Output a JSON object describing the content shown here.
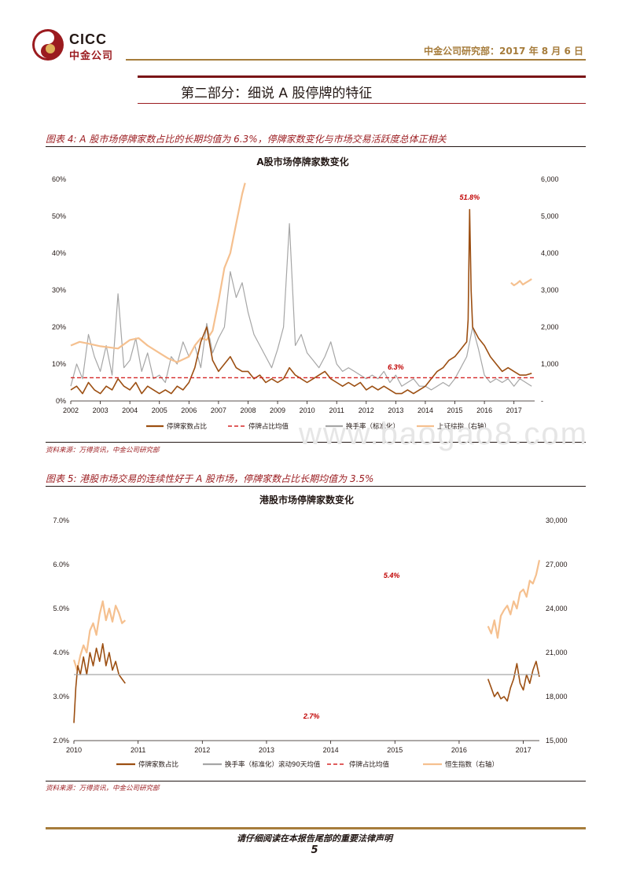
{
  "header": {
    "logo_en": "CICC",
    "logo_cn": "中金公司",
    "right_text": "中金公司研究部：2017 年 8 月 6 日",
    "colors": {
      "brand": "#9b1b1f",
      "gold": "#a67c3b"
    }
  },
  "section": {
    "title": "第二部分：细说 A 股停牌的特征"
  },
  "figures": [
    {
      "caption": "图表 4: A 股市场停牌家数占比的长期均值为 6.3%，停牌家数变化与市场交易活跃度总体正相关",
      "source": "资料来源：万得资讯，中金公司研究部"
    },
    {
      "caption": "图表 5: 港股市场交易的连续性好于 A 股市场，停牌家数占比长期均值为 3.5%",
      "source": "资料来源：万得资讯，中金公司研究部"
    }
  ],
  "chart_data": [
    {
      "type": "line",
      "title": "A股市场停牌家数变化",
      "x_ticks": [
        "2002",
        "2003",
        "2004",
        "2005",
        "2006",
        "2007",
        "2008",
        "2009",
        "2010",
        "2011",
        "2012",
        "2013",
        "2014",
        "2015",
        "2016",
        "2017"
      ],
      "x_range": [
        2002.0,
        2017.7
      ],
      "y_left_ticks": [
        "0%",
        "10%",
        "20%",
        "30%",
        "40%",
        "50%",
        "60%"
      ],
      "ylim_left": [
        0,
        60
      ],
      "y_right_ticks": [
        "-",
        "1,000",
        "2,000",
        "3,000",
        "4,000",
        "5,000",
        "6,000"
      ],
      "ylim_right": [
        0,
        6000
      ],
      "annotations": [
        {
          "text": "51.8%",
          "x": 2015.5,
          "y": 54.5
        },
        {
          "text": "6.3%",
          "x": 2013.0,
          "y": 8.5
        }
      ],
      "legend": [
        "停牌家数占比",
        "停牌占比均值",
        "换手率（标准化）",
        "上证综指（右轴）"
      ],
      "colors": {
        "suspension": "#9c4f12",
        "mean": "#d62828",
        "turnover": "#a6a6a6",
        "index": "#f5c08f"
      },
      "series": [
        {
          "name": "换手率（标准化）",
          "axis": "left",
          "x": [
            2002.0,
            2002.2,
            2002.4,
            2002.6,
            2002.8,
            2003.0,
            2003.2,
            2003.4,
            2003.6,
            2003.8,
            2004.0,
            2004.2,
            2004.4,
            2004.6,
            2004.8,
            2005.0,
            2005.2,
            2005.4,
            2005.6,
            2005.8,
            2006.0,
            2006.2,
            2006.4,
            2006.6,
            2006.8,
            2007.0,
            2007.2,
            2007.4,
            2007.6,
            2007.8,
            2008.0,
            2008.2,
            2008.4,
            2008.6,
            2008.8,
            2009.0,
            2009.2,
            2009.4,
            2009.6,
            2009.8,
            2010.0,
            2010.2,
            2010.4,
            2010.6,
            2010.8,
            2011.0,
            2011.2,
            2011.4,
            2011.6,
            2011.8,
            2012.0,
            2012.2,
            2012.4,
            2012.6,
            2012.8,
            2013.0,
            2013.2,
            2013.4,
            2013.6,
            2013.8,
            2014.0,
            2014.2,
            2014.4,
            2014.6,
            2014.8,
            2015.0,
            2015.2,
            2015.4,
            2015.6,
            2015.8,
            2016.0,
            2016.2,
            2016.4,
            2016.6,
            2016.8,
            2017.0,
            2017.2,
            2017.4,
            2017.6
          ],
          "values": [
            4,
            10,
            6,
            18,
            12,
            8,
            15,
            7,
            29,
            9,
            11,
            17,
            8,
            13,
            6,
            7,
            5,
            12,
            10,
            16,
            12,
            15,
            9,
            21,
            13,
            17,
            20,
            35,
            28,
            32,
            24,
            18,
            15,
            12,
            9,
            14,
            20,
            48,
            15,
            18,
            13,
            11,
            9,
            12,
            16,
            10,
            8,
            9,
            8,
            7,
            6,
            7,
            6,
            8,
            5,
            7,
            4,
            5,
            6,
            4,
            4,
            3,
            4,
            5,
            4,
            6,
            9,
            12,
            20,
            14,
            7,
            5,
            6,
            5,
            6,
            4,
            6,
            5,
            4
          ]
        },
        {
          "name": "上证综指（右轴）",
          "axis": "right",
          "x": [
            2002.0,
            2002.3,
            2002.6,
            2003.0,
            2003.3,
            2003.6,
            2004.0,
            2004.3,
            2004.6,
            2005.0,
            2005.3,
            2005.6,
            2006.0,
            2006.2,
            2006.4,
            2006.6,
            2006.8,
            2007.0,
            2007.2,
            2007.4,
            2007.6,
            2007.8,
            2007.9
          ],
          "values": [
            1500,
            1600,
            1550,
            1480,
            1450,
            1420,
            1650,
            1700,
            1500,
            1300,
            1150,
            1050,
            1200,
            1500,
            1700,
            1650,
            1900,
            2700,
            3600,
            4000,
            4800,
            5600,
            5900
          ]
        },
        {
          "name": "上证综指（右轴）",
          "axis": "right",
          "x": [
            2016.9,
            2017.0,
            2017.1,
            2017.2,
            2017.3,
            2017.4,
            2017.5,
            2017.6
          ],
          "values": [
            3200,
            3130,
            3180,
            3250,
            3150,
            3200,
            3250,
            3300
          ]
        },
        {
          "name": "停牌家数占比",
          "axis": "left",
          "x": [
            2002.0,
            2002.2,
            2002.4,
            2002.6,
            2002.8,
            2003.0,
            2003.2,
            2003.4,
            2003.6,
            2003.8,
            2004.0,
            2004.2,
            2004.4,
            2004.6,
            2004.8,
            2005.0,
            2005.2,
            2005.4,
            2005.6,
            2005.8,
            2006.0,
            2006.2,
            2006.4,
            2006.6,
            2006.8,
            2007.0,
            2007.2,
            2007.4,
            2007.6,
            2007.8,
            2008.0,
            2008.2,
            2008.4,
            2008.6,
            2008.8,
            2009.0,
            2009.2,
            2009.4,
            2009.6,
            2009.8,
            2010.0,
            2010.2,
            2010.4,
            2010.6,
            2010.8,
            2011.0,
            2011.2,
            2011.4,
            2011.6,
            2011.8,
            2012.0,
            2012.2,
            2012.4,
            2012.6,
            2012.8,
            2013.0,
            2013.2,
            2013.4,
            2013.6,
            2013.8,
            2014.0,
            2014.2,
            2014.4,
            2014.6,
            2014.8,
            2015.0,
            2015.2,
            2015.4,
            2015.45,
            2015.5,
            2015.55,
            2015.6,
            2015.8,
            2016.0,
            2016.2,
            2016.4,
            2016.6,
            2016.8,
            2017.0,
            2017.2,
            2017.4,
            2017.6
          ],
          "values": [
            3,
            4,
            2,
            5,
            3,
            2,
            4,
            3,
            6,
            4,
            3,
            5,
            2,
            4,
            3,
            2,
            3,
            2,
            4,
            3,
            5,
            9,
            16,
            20,
            11,
            8,
            10,
            12,
            9,
            8,
            8,
            6,
            7,
            5,
            6,
            5,
            6,
            9,
            7,
            6,
            5,
            6,
            7,
            8,
            6,
            5,
            4,
            5,
            4,
            5,
            3,
            4,
            3,
            4,
            3,
            2,
            2,
            3,
            2,
            3,
            4,
            6,
            8,
            9,
            11,
            12,
            14,
            16,
            22,
            51.8,
            30,
            20,
            17,
            15,
            12,
            10,
            8,
            9,
            8,
            7,
            7,
            7.5
          ]
        },
        {
          "name": "停牌占比均值",
          "axis": "left",
          "x": [
            2002.0,
            2017.7
          ],
          "values": [
            6.3,
            6.3
          ]
        }
      ]
    },
    {
      "type": "line",
      "title": "港股市场停牌家数变化",
      "x_ticks": [
        "2010",
        "2011",
        "2012",
        "2013",
        "2014",
        "2015",
        "2016",
        "2017"
      ],
      "x_range": [
        2010.0,
        2017.25
      ],
      "y_left_ticks": [
        "2.0%",
        "3.0%",
        "4.0%",
        "5.0%",
        "6.0%",
        "7.0%"
      ],
      "ylim_left": [
        2.0,
        7.0
      ],
      "y_right_ticks": [
        "15,000",
        "18,000",
        "21,000",
        "24,000",
        "27,000",
        "30,000"
      ],
      "ylim_right": [
        15000,
        30000
      ],
      "annotations": [
        {
          "text": "5.4%",
          "x": 2014.95,
          "y": 5.7
        },
        {
          "text": "2.7%",
          "x": 2013.7,
          "y": 2.5
        }
      ],
      "legend": [
        "停牌家数占比",
        "换手率（标准化）滚动90天均值",
        "停牌占比均值",
        "恒生指数（右轴）"
      ],
      "colors": {
        "suspension": "#9c4f12",
        "mean": "#d62828",
        "turnover": "#a6a6a6",
        "index": "#f5c08f"
      },
      "series": [
        {
          "name": "恒生指数（右轴）",
          "axis": "right",
          "x": [
            2010.0,
            2010.05,
            2010.1,
            2010.15,
            2010.2,
            2010.25,
            2010.3,
            2010.35,
            2010.4,
            2010.45,
            2010.5,
            2010.55,
            2010.6,
            2010.65,
            2010.7,
            2010.75,
            2010.8
          ],
          "values": [
            20500,
            19800,
            20800,
            21500,
            21000,
            22500,
            23000,
            22200,
            23600,
            24500,
            23200,
            24000,
            23100,
            24200,
            23700,
            23000,
            23200
          ]
        },
        {
          "name": "恒生指数（右轴）",
          "axis": "right",
          "x": [
            2016.45,
            2016.5,
            2016.55,
            2016.6,
            2016.65,
            2016.7,
            2016.75,
            2016.8,
            2016.85,
            2016.9,
            2016.95,
            2017.0,
            2017.05,
            2017.1,
            2017.15,
            2017.2,
            2017.25
          ],
          "values": [
            22800,
            22300,
            23200,
            22000,
            23500,
            23900,
            24200,
            23600,
            24500,
            24000,
            25100,
            25300,
            24800,
            25900,
            25700,
            26300,
            27300
          ]
        },
        {
          "name": "停牌家数占比",
          "axis": "left",
          "x": [
            2010.0,
            2010.03,
            2010.06,
            2010.1,
            2010.15,
            2010.2,
            2010.25,
            2010.3,
            2010.35,
            2010.4,
            2010.45,
            2010.5,
            2010.55,
            2010.6,
            2010.65,
            2010.7,
            2010.75,
            2010.8
          ],
          "values": [
            2.4,
            3.2,
            3.7,
            3.5,
            3.9,
            3.5,
            4.0,
            3.7,
            4.1,
            3.8,
            4.2,
            3.7,
            4.0,
            3.6,
            3.8,
            3.5,
            3.4,
            3.3
          ]
        },
        {
          "name": "停牌家数占比",
          "axis": "left",
          "x": [
            2016.45,
            2016.5,
            2016.55,
            2016.6,
            2016.65,
            2016.7,
            2016.75,
            2016.8,
            2016.85,
            2016.9,
            2016.95,
            2017.0,
            2017.05,
            2017.1,
            2017.15,
            2017.2,
            2017.25
          ],
          "values": [
            3.4,
            3.2,
            3.0,
            3.1,
            2.95,
            3.0,
            2.9,
            3.2,
            3.4,
            3.75,
            3.3,
            3.15,
            3.5,
            3.3,
            3.6,
            3.8,
            3.45
          ]
        },
        {
          "name": "停牌占比均值",
          "axis": "left",
          "x": [
            2010.0,
            2017.25
          ],
          "values": [
            3.5,
            3.5
          ]
        }
      ]
    }
  ],
  "watermark": "www.baogao8.com",
  "footer": {
    "note": "请仔细阅读在本报告尾部的重要法律声明",
    "page": "5"
  }
}
